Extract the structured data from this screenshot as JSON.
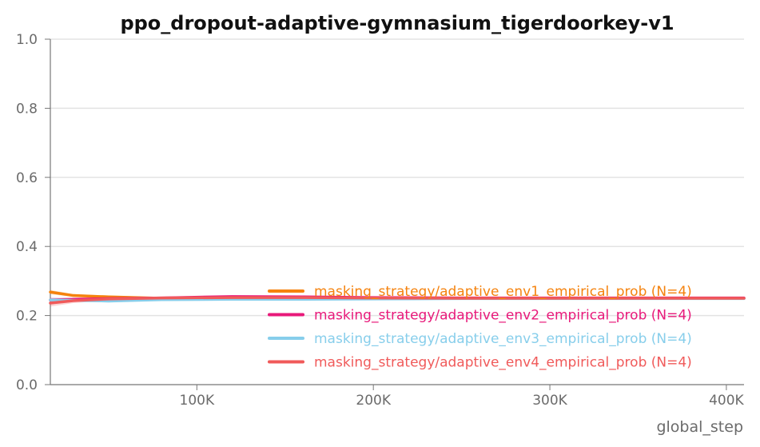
{
  "chart_data": {
    "type": "line",
    "title": "ppo_dropout-adaptive-gymnasium_tigerdoorkey-v1",
    "xlabel": "global_step",
    "ylabel": "",
    "xlim": [
      17000,
      410000
    ],
    "ylim": [
      0,
      1.0
    ],
    "x_ticks": [
      {
        "value": 100000,
        "label": "100K"
      },
      {
        "value": 200000,
        "label": "200K"
      },
      {
        "value": 300000,
        "label": "300K"
      },
      {
        "value": 400000,
        "label": "400K"
      }
    ],
    "y_ticks": [
      {
        "value": 0.0,
        "label": "0.0"
      },
      {
        "value": 0.2,
        "label": "0.2"
      },
      {
        "value": 0.4,
        "label": "0.4"
      },
      {
        "value": 0.6,
        "label": "0.6"
      },
      {
        "value": 0.8,
        "label": "0.8"
      },
      {
        "value": 1.0,
        "label": "1.0"
      }
    ],
    "grid": "horizontal",
    "legend_position": "lower-right",
    "series": [
      {
        "name": "masking_strategy/adaptive_env1_empirical_prob (N=4)",
        "color": "#f5820d",
        "x": [
          17000,
          30000,
          50000,
          80000,
          120000,
          160000,
          200000,
          250000,
          300000,
          350000,
          410000
        ],
        "y": [
          0.268,
          0.258,
          0.254,
          0.25,
          0.248,
          0.249,
          0.25,
          0.25,
          0.25,
          0.25,
          0.25
        ],
        "band_lower": [
          0.262,
          0.254,
          0.25,
          0.247,
          0.246,
          0.247,
          0.248,
          0.248,
          0.248,
          0.248,
          0.248
        ],
        "band_upper": [
          0.274,
          0.262,
          0.258,
          0.253,
          0.25,
          0.251,
          0.252,
          0.252,
          0.252,
          0.252,
          0.252
        ]
      },
      {
        "name": "masking_strategy/adaptive_env2_empirical_prob (N=4)",
        "color": "#e8197a",
        "x": [
          17000,
          30000,
          50000,
          80000,
          120000,
          160000,
          200000,
          250000,
          300000,
          350000,
          410000
        ],
        "y": [
          0.245,
          0.247,
          0.249,
          0.251,
          0.255,
          0.254,
          0.252,
          0.251,
          0.251,
          0.251,
          0.251
        ],
        "band_lower": [
          0.238,
          0.243,
          0.246,
          0.248,
          0.252,
          0.251,
          0.25,
          0.249,
          0.249,
          0.249,
          0.249
        ],
        "band_upper": [
          0.252,
          0.251,
          0.252,
          0.254,
          0.258,
          0.257,
          0.254,
          0.253,
          0.253,
          0.253,
          0.253
        ]
      },
      {
        "name": "masking_strategy/adaptive_env3_empirical_prob (N=4)",
        "color": "#87ceeb",
        "x": [
          17000,
          30000,
          50000,
          80000,
          120000,
          160000,
          200000,
          250000,
          300000,
          350000,
          410000
        ],
        "y": [
          0.245,
          0.244,
          0.242,
          0.246,
          0.247,
          0.247,
          0.248,
          0.249,
          0.249,
          0.249,
          0.249
        ],
        "band_lower": [
          0.24,
          0.24,
          0.238,
          0.243,
          0.245,
          0.245,
          0.246,
          0.247,
          0.247,
          0.247,
          0.247
        ],
        "band_upper": [
          0.25,
          0.248,
          0.246,
          0.249,
          0.249,
          0.249,
          0.25,
          0.251,
          0.251,
          0.251,
          0.251
        ]
      },
      {
        "name": "masking_strategy/adaptive_env4_empirical_prob (N=4)",
        "color": "#f05a5a",
        "x": [
          17000,
          30000,
          50000,
          80000,
          120000,
          160000,
          200000,
          250000,
          300000,
          350000,
          410000
        ],
        "y": [
          0.236,
          0.243,
          0.248,
          0.251,
          0.252,
          0.252,
          0.251,
          0.25,
          0.25,
          0.25,
          0.25
        ],
        "band_lower": [
          0.226,
          0.236,
          0.244,
          0.248,
          0.25,
          0.25,
          0.249,
          0.248,
          0.248,
          0.248,
          0.248
        ],
        "band_upper": [
          0.246,
          0.25,
          0.252,
          0.254,
          0.254,
          0.254,
          0.253,
          0.252,
          0.252,
          0.252,
          0.252
        ]
      }
    ]
  }
}
